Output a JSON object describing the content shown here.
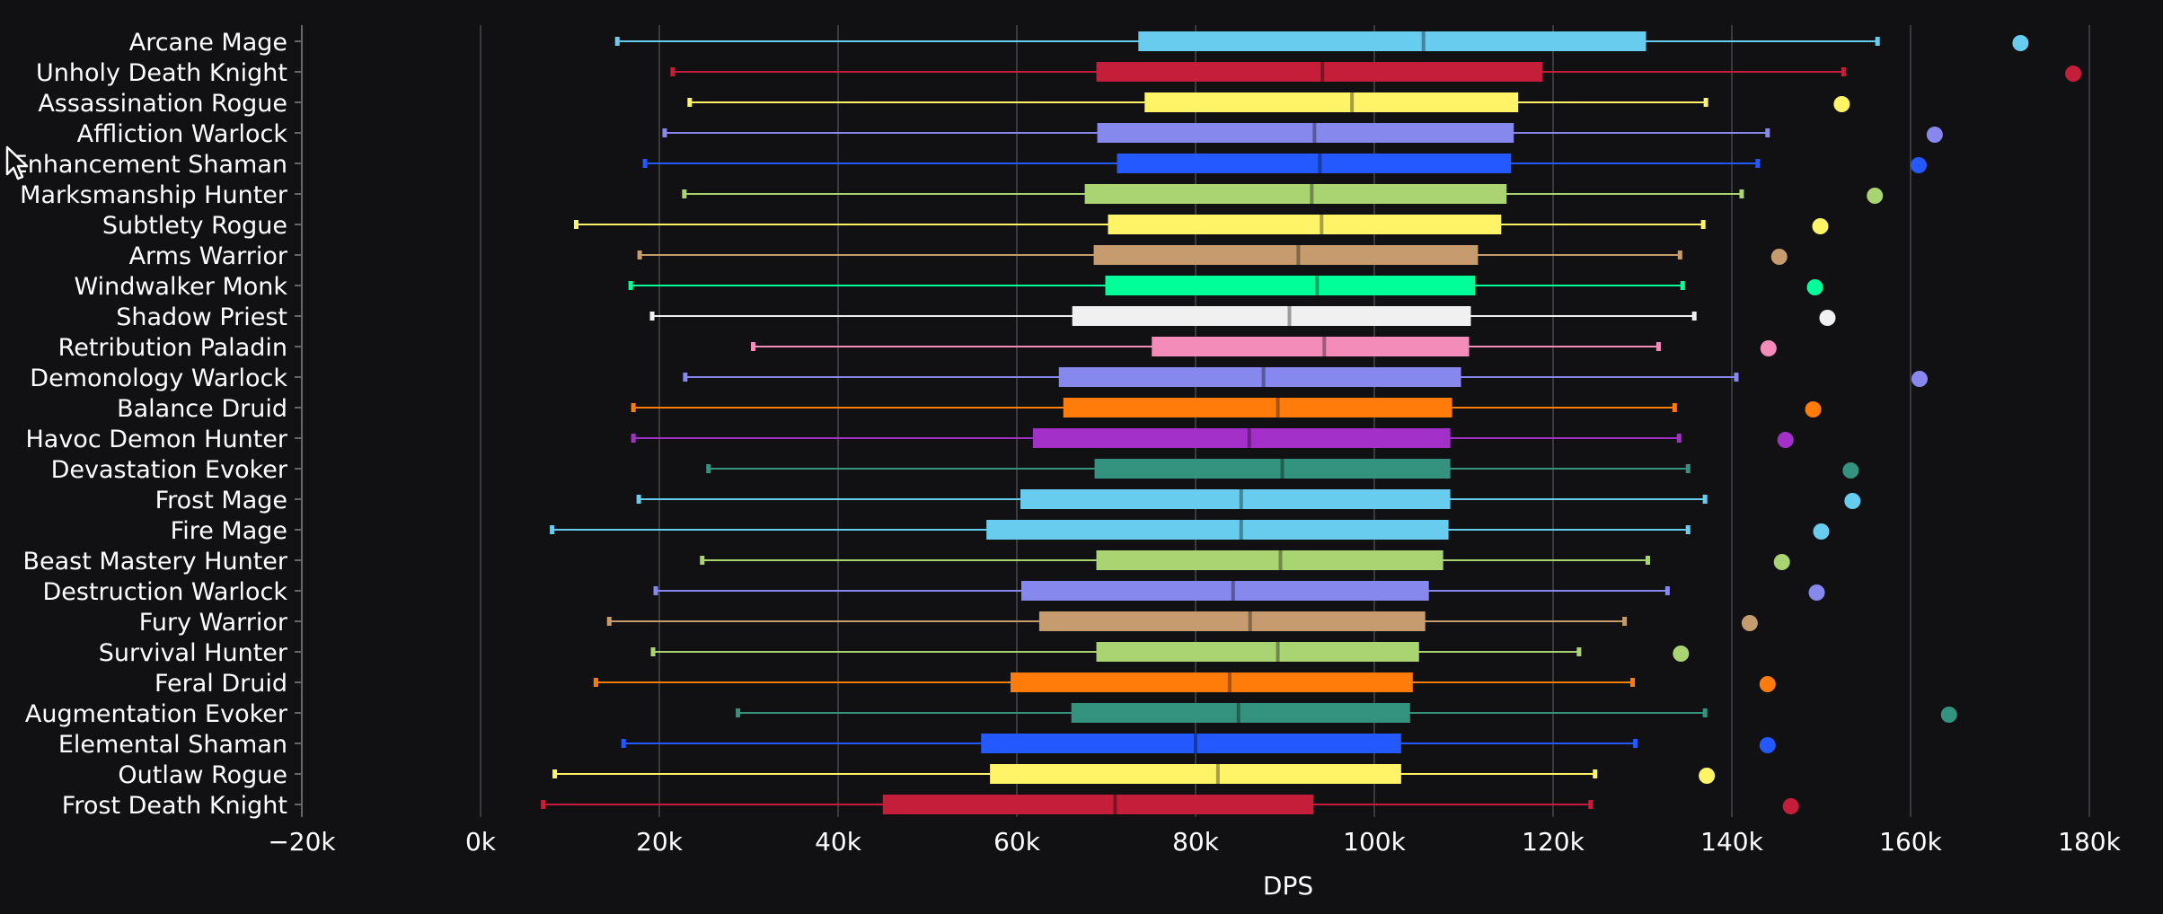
{
  "chart_data": {
    "type": "boxplot",
    "orientation": "horizontal",
    "title": "",
    "xlabel": "DPS",
    "ylabel": "",
    "xlim": [
      -20000,
      180000
    ],
    "xticks": [
      -20000,
      0,
      20000,
      40000,
      60000,
      80000,
      100000,
      120000,
      140000,
      160000,
      180000
    ],
    "xtick_labels": [
      "−20k",
      "0k",
      "20k",
      "40k",
      "60k",
      "80k",
      "100k",
      "120k",
      "140k",
      "160k",
      "180k"
    ],
    "grid": true,
    "legend": "none",
    "series": [
      {
        "name": "Arcane Mage",
        "color": "#68ccef",
        "min": 15300,
        "q1": 73600,
        "median": 105500,
        "q3": 130400,
        "max": 156300,
        "outlier": 172300
      },
      {
        "name": "Unholy Death Knight",
        "color": "#c41e3a",
        "min": 21500,
        "q1": 68900,
        "median": 94200,
        "q3": 118800,
        "max": 152500,
        "outlier": 178200
      },
      {
        "name": "Assassination Rogue",
        "color": "#fff468",
        "min": 23400,
        "q1": 74300,
        "median": 97500,
        "q3": 116100,
        "max": 137100,
        "outlier": 152300
      },
      {
        "name": "Affliction Warlock",
        "color": "#8788ee",
        "min": 20600,
        "q1": 69000,
        "median": 93300,
        "q3": 115600,
        "max": 144000,
        "outlier": 162700
      },
      {
        "name": "Enhancement Shaman",
        "color": "#2359ff",
        "min": 18400,
        "q1": 71200,
        "median": 93900,
        "q3": 115300,
        "max": 142900,
        "outlier": 160900
      },
      {
        "name": "Marksmanship Hunter",
        "color": "#aad372",
        "min": 22800,
        "q1": 67600,
        "median": 93000,
        "q3": 114800,
        "max": 141100,
        "outlier": 156000
      },
      {
        "name": "Subtlety Rogue",
        "color": "#fff468",
        "min": 10700,
        "q1": 70200,
        "median": 94100,
        "q3": 114200,
        "max": 136800,
        "outlier": 149900
      },
      {
        "name": "Arms Warrior",
        "color": "#c69b6d",
        "min": 17800,
        "q1": 68600,
        "median": 91500,
        "q3": 111600,
        "max": 134200,
        "outlier": 145300
      },
      {
        "name": "Windwalker Monk",
        "color": "#00ff98",
        "min": 16800,
        "q1": 69900,
        "median": 93600,
        "q3": 111300,
        "max": 134500,
        "outlier": 149300
      },
      {
        "name": "Shadow Priest",
        "color": "#f0f0f0",
        "min": 19200,
        "q1": 66200,
        "median": 90500,
        "q3": 110800,
        "max": 135800,
        "outlier": 150700
      },
      {
        "name": "Retribution Paladin",
        "color": "#f48cba",
        "min": 30500,
        "q1": 75100,
        "median": 94400,
        "q3": 110600,
        "max": 131800,
        "outlier": 144100
      },
      {
        "name": "Demonology Warlock",
        "color": "#8788ee",
        "min": 22900,
        "q1": 64700,
        "median": 87600,
        "q3": 109700,
        "max": 140500,
        "outlier": 161000
      },
      {
        "name": "Balance Druid",
        "color": "#ff7c0a",
        "min": 17100,
        "q1": 65200,
        "median": 89200,
        "q3": 108700,
        "max": 133600,
        "outlier": 149100
      },
      {
        "name": "Havoc Demon Hunter",
        "color": "#a330c9",
        "min": 17100,
        "q1": 61800,
        "median": 86000,
        "q3": 108500,
        "max": 134100,
        "outlier": 146000
      },
      {
        "name": "Devastation Evoker",
        "color": "#33937f",
        "min": 25500,
        "q1": 68700,
        "median": 89700,
        "q3": 108500,
        "max": 135100,
        "outlier": 153300
      },
      {
        "name": "Frost Mage",
        "color": "#68ccef",
        "min": 17700,
        "q1": 60400,
        "median": 85100,
        "q3": 108500,
        "max": 137000,
        "outlier": 153500
      },
      {
        "name": "Fire Mage",
        "color": "#68ccef",
        "min": 8000,
        "q1": 56600,
        "median": 85100,
        "q3": 108300,
        "max": 135100,
        "outlier": 150000
      },
      {
        "name": "Beast Mastery Hunter",
        "color": "#aad372",
        "min": 24800,
        "q1": 68900,
        "median": 89500,
        "q3": 107700,
        "max": 130600,
        "outlier": 145600
      },
      {
        "name": "Destruction Warlock",
        "color": "#8788ee",
        "min": 19600,
        "q1": 60500,
        "median": 84200,
        "q3": 106100,
        "max": 132800,
        "outlier": 149500
      },
      {
        "name": "Fury Warrior",
        "color": "#c69b6d",
        "min": 14400,
        "q1": 62500,
        "median": 86100,
        "q3": 105700,
        "max": 128000,
        "outlier": 142000
      },
      {
        "name": "Survival Hunter",
        "color": "#aad372",
        "min": 19300,
        "q1": 68900,
        "median": 89200,
        "q3": 105000,
        "max": 122900,
        "outlier": 134300
      },
      {
        "name": "Feral Druid",
        "color": "#ff7c0a",
        "min": 12900,
        "q1": 59300,
        "median": 83800,
        "q3": 104300,
        "max": 128900,
        "outlier": 144000
      },
      {
        "name": "Augmentation Evoker",
        "color": "#33937f",
        "min": 28800,
        "q1": 66100,
        "median": 84800,
        "q3": 104000,
        "max": 137000,
        "outlier": 164300
      },
      {
        "name": "Elemental Shaman",
        "color": "#2359ff",
        "min": 16000,
        "q1": 56000,
        "median": 80000,
        "q3": 103000,
        "max": 129200,
        "outlier": 144000
      },
      {
        "name": "Outlaw Rogue",
        "color": "#fff468",
        "min": 8300,
        "q1": 57000,
        "median": 82500,
        "q3": 103000,
        "max": 124700,
        "outlier": 137200
      },
      {
        "name": "Frost Death Knight",
        "color": "#c41e3a",
        "min": 7000,
        "q1": 45000,
        "median": 71000,
        "q3": 93200,
        "max": 124200,
        "outlier": 146600
      }
    ]
  }
}
